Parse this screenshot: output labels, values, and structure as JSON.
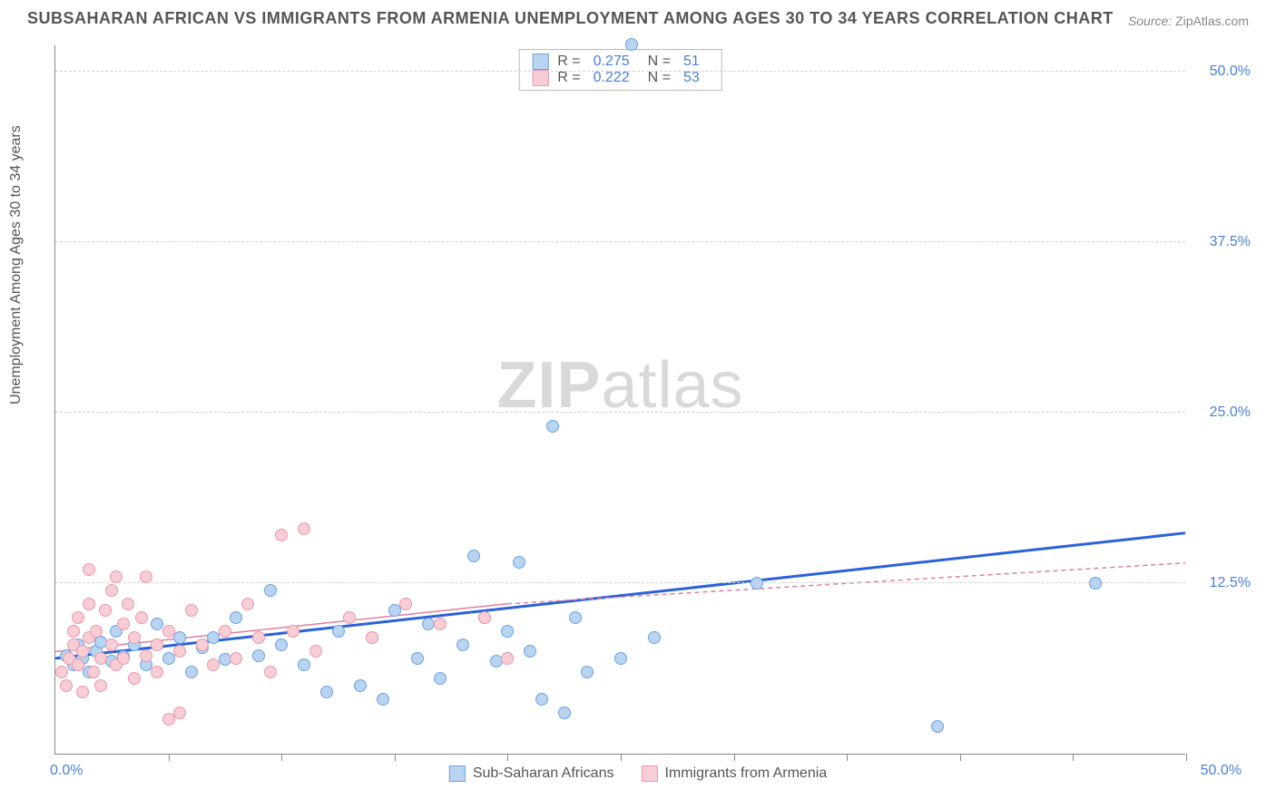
{
  "title": "SUBSAHARAN AFRICAN VS IMMIGRANTS FROM ARMENIA UNEMPLOYMENT AMONG AGES 30 TO 34 YEARS CORRELATION CHART",
  "source_label": "Source:",
  "source_value": "ZipAtlas.com",
  "watermark_a": "ZIP",
  "watermark_b": "atlas",
  "chart": {
    "type": "scatter",
    "ylabel": "Unemployment Among Ages 30 to 34 years",
    "xlim": [
      0,
      50
    ],
    "ylim": [
      0,
      52
    ],
    "x_origin_label": "0.0%",
    "x_max_label": "50.0%",
    "x_tick_step": 5,
    "y_ticks": [
      12.5,
      25.0,
      37.5,
      50.0
    ],
    "y_tick_labels": [
      "12.5%",
      "25.0%",
      "37.5%",
      "50.0%"
    ],
    "grid_color": "#d0d0d0",
    "axis_color": "#888888",
    "background_color": "#ffffff",
    "point_radius": 7,
    "series": [
      {
        "name": "Sub-Saharan Africans",
        "fill": "#b9d4f0",
        "stroke": "#6aa3e0",
        "trend_color": "#2962d9",
        "trend_width": 3,
        "trend_dash": "",
        "trend": {
          "x1": 0,
          "y1": 7.0,
          "x2": 50,
          "y2": 16.2
        },
        "R": "0.275",
        "N": "51",
        "points": [
          [
            0.5,
            7.2
          ],
          [
            0.8,
            6.5
          ],
          [
            1.0,
            8.0
          ],
          [
            1.2,
            7.0
          ],
          [
            1.5,
            6.0
          ],
          [
            1.8,
            7.5
          ],
          [
            2.0,
            8.2
          ],
          [
            2.5,
            6.8
          ],
          [
            2.7,
            9.0
          ],
          [
            3.0,
            7.1
          ],
          [
            3.5,
            8.0
          ],
          [
            4.0,
            6.5
          ],
          [
            4.5,
            9.5
          ],
          [
            5.0,
            7.0
          ],
          [
            5.5,
            8.5
          ],
          [
            6.0,
            6.0
          ],
          [
            6.5,
            7.8
          ],
          [
            7.0,
            8.5
          ],
          [
            7.5,
            6.9
          ],
          [
            8.0,
            10.0
          ],
          [
            9.0,
            7.2
          ],
          [
            9.5,
            12.0
          ],
          [
            10.0,
            8.0
          ],
          [
            11.0,
            6.5
          ],
          [
            12.0,
            4.5
          ],
          [
            12.5,
            9.0
          ],
          [
            13.5,
            5.0
          ],
          [
            14.0,
            8.5
          ],
          [
            15.0,
            10.5
          ],
          [
            16.0,
            7.0
          ],
          [
            16.5,
            9.5
          ],
          [
            17.0,
            5.5
          ],
          [
            18.0,
            8.0
          ],
          [
            18.5,
            14.5
          ],
          [
            19.0,
            10.0
          ],
          [
            19.5,
            6.8
          ],
          [
            20.0,
            9.0
          ],
          [
            20.5,
            14.0
          ],
          [
            21.0,
            7.5
          ],
          [
            21.5,
            4.0
          ],
          [
            22.0,
            24.0
          ],
          [
            23.0,
            10.0
          ],
          [
            23.5,
            6.0
          ],
          [
            25.0,
            7.0
          ],
          [
            26.5,
            8.5
          ],
          [
            31.0,
            12.5
          ],
          [
            25.5,
            52.0
          ],
          [
            39.0,
            2.0
          ],
          [
            46.0,
            12.5
          ],
          [
            22.5,
            3.0
          ],
          [
            14.5,
            4.0
          ]
        ]
      },
      {
        "name": "Immigrants from Armenia",
        "fill": "#f7cdd6",
        "stroke": "#e998ab",
        "trend_color": "#e07f9a",
        "trend_width": 1.5,
        "trend_dash": "",
        "trend_ext_dash": "5,4",
        "trend": {
          "x1": 0,
          "y1": 7.5,
          "x2": 20,
          "y2": 11.0
        },
        "trend_ext": {
          "x1": 20,
          "y1": 11.0,
          "x2": 50,
          "y2": 14.0
        },
        "R": "0.222",
        "N": "53",
        "points": [
          [
            0.3,
            6.0
          ],
          [
            0.5,
            5.0
          ],
          [
            0.6,
            7.0
          ],
          [
            0.8,
            8.0
          ],
          [
            0.8,
            9.0
          ],
          [
            1.0,
            6.5
          ],
          [
            1.0,
            10.0
          ],
          [
            1.2,
            7.5
          ],
          [
            1.2,
            4.5
          ],
          [
            1.5,
            8.5
          ],
          [
            1.5,
            11.0
          ],
          [
            1.5,
            13.5
          ],
          [
            1.7,
            6.0
          ],
          [
            1.8,
            9.0
          ],
          [
            2.0,
            7.0
          ],
          [
            2.0,
            5.0
          ],
          [
            2.2,
            10.5
          ],
          [
            2.5,
            8.0
          ],
          [
            2.5,
            12.0
          ],
          [
            2.7,
            6.5
          ],
          [
            2.7,
            13.0
          ],
          [
            3.0,
            9.5
          ],
          [
            3.0,
            7.0
          ],
          [
            3.2,
            11.0
          ],
          [
            3.5,
            5.5
          ],
          [
            3.5,
            8.5
          ],
          [
            3.8,
            10.0
          ],
          [
            4.0,
            7.2
          ],
          [
            4.0,
            13.0
          ],
          [
            4.5,
            8.0
          ],
          [
            4.5,
            6.0
          ],
          [
            5.0,
            9.0
          ],
          [
            5.0,
            2.5
          ],
          [
            5.5,
            7.5
          ],
          [
            6.0,
            10.5
          ],
          [
            6.5,
            8.0
          ],
          [
            7.0,
            6.5
          ],
          [
            7.5,
            9.0
          ],
          [
            8.0,
            7.0
          ],
          [
            8.5,
            11.0
          ],
          [
            9.0,
            8.5
          ],
          [
            9.5,
            6.0
          ],
          [
            10.0,
            16.0
          ],
          [
            10.5,
            9.0
          ],
          [
            11.0,
            16.5
          ],
          [
            11.5,
            7.5
          ],
          [
            13.0,
            10.0
          ],
          [
            14.0,
            8.5
          ],
          [
            15.5,
            11.0
          ],
          [
            17.0,
            9.5
          ],
          [
            19.0,
            10.0
          ],
          [
            20.0,
            7.0
          ],
          [
            5.5,
            3.0
          ]
        ]
      }
    ],
    "legend_top_labels": {
      "R": "R =",
      "N": "N ="
    },
    "legend_bottom": [
      "Sub-Saharan Africans",
      "Immigrants from Armenia"
    ]
  }
}
